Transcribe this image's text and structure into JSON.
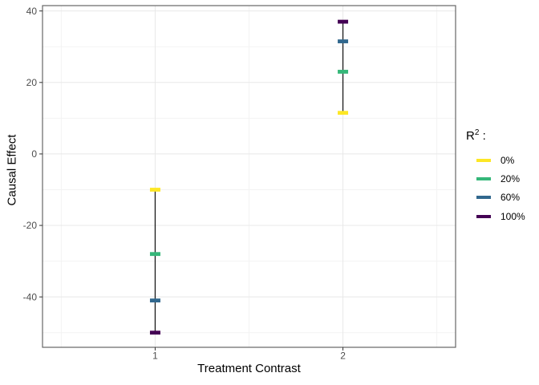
{
  "chart_data": {
    "type": "pointrange",
    "title": "",
    "xlabel": "Treatment Contrast",
    "ylabel": "Causal Effect",
    "x": [
      1,
      2
    ],
    "x_domain": [
      0.4,
      2.6
    ],
    "y_domain": [
      -54.1,
      41.5
    ],
    "x_ticks": [
      1,
      2
    ],
    "x_minor_ticks": [
      0.5,
      1.5,
      2.5
    ],
    "y_ticks": [
      -40,
      -20,
      0,
      20,
      40
    ],
    "y_minor_ticks": [
      -50,
      -30,
      -10,
      10,
      30
    ],
    "grid": "on",
    "legend": {
      "position": "right",
      "title_base": "R",
      "title_sup": "2",
      "title_suffix": " :"
    },
    "series": [
      {
        "name": "0%",
        "color": "#FDE725",
        "values": [
          -10,
          11.5
        ]
      },
      {
        "name": "20%",
        "color": "#35B779",
        "values": [
          -28,
          23
        ]
      },
      {
        "name": "60%",
        "color": "#31688E",
        "values": [
          -41,
          31.5
        ]
      },
      {
        "name": "100%",
        "color": "#440154",
        "values": [
          -50,
          37
        ]
      }
    ],
    "ranges": [
      {
        "x": 1,
        "ymin": -50,
        "ymax": -10
      },
      {
        "x": 2,
        "ymin": 11.5,
        "ymax": 37
      }
    ],
    "style_colors": {
      "grid_major": "#E8E8E8",
      "grid_minor": "#F3F3F3",
      "panel_border": "#666666",
      "axis_tick": "#333333",
      "range_line": "#1A1A1A",
      "tick_label": "#4D4D4D"
    }
  }
}
